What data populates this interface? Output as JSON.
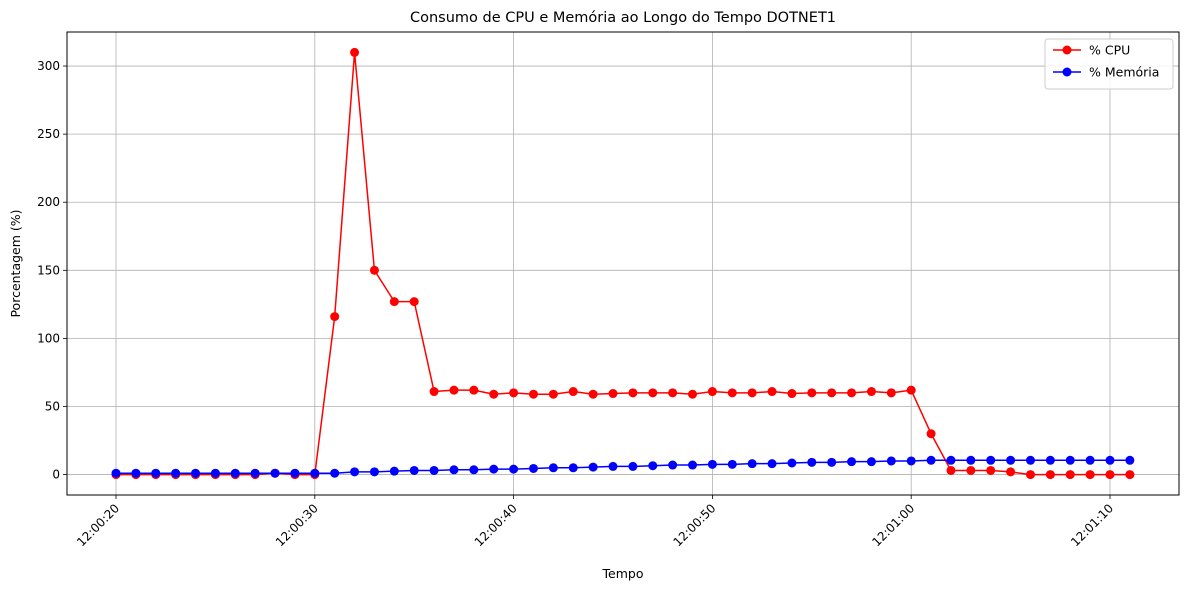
{
  "chart_data": {
    "type": "line",
    "title": "Consumo de CPU e Memória ao Longo do Tempo DOTNET1",
    "xlabel": "Tempo",
    "ylabel": "Porcentagem (%)",
    "x_start": "12:00:20",
    "x_end": "12:01:11",
    "x_interval_seconds": 1,
    "x_ticks": [
      "12:00:20",
      "12:00:30",
      "12:00:40",
      "12:00:50",
      "12:01:00",
      "12:01:10"
    ],
    "y_ticks": [
      0,
      50,
      100,
      150,
      200,
      250,
      300
    ],
    "ylim": [
      -15,
      325
    ],
    "grid": true,
    "legend_position": "top-right",
    "series": [
      {
        "name": "% CPU",
        "color": "#ff0000",
        "values": [
          0,
          0,
          0,
          0,
          0,
          0,
          0,
          0,
          1,
          0,
          0,
          116,
          310,
          150,
          127,
          127,
          61,
          62,
          62,
          59,
          60,
          59,
          59,
          61,
          59,
          59.5,
          60,
          60,
          60,
          59,
          61,
          60,
          60,
          61,
          59.5,
          60,
          60,
          60,
          61,
          60,
          62,
          30,
          3,
          3,
          3,
          2,
          0,
          0,
          0,
          0,
          0,
          0
        ]
      },
      {
        "name": "% Memória",
        "color": "#0000ff",
        "values": [
          1,
          1,
          1,
          1,
          1,
          1,
          1,
          1,
          1,
          1,
          1,
          1,
          2,
          2,
          2.5,
          3,
          3,
          3.5,
          3.5,
          4,
          4,
          4.5,
          5,
          5,
          5.5,
          6,
          6,
          6.5,
          7,
          7,
          7.5,
          7.5,
          8,
          8,
          8.5,
          9,
          9,
          9.5,
          9.5,
          10,
          10,
          10.5,
          10.5,
          10.5,
          10.5,
          10.5,
          10.5,
          10.5,
          10.5,
          10.5,
          10.5,
          10.5
        ]
      }
    ]
  }
}
